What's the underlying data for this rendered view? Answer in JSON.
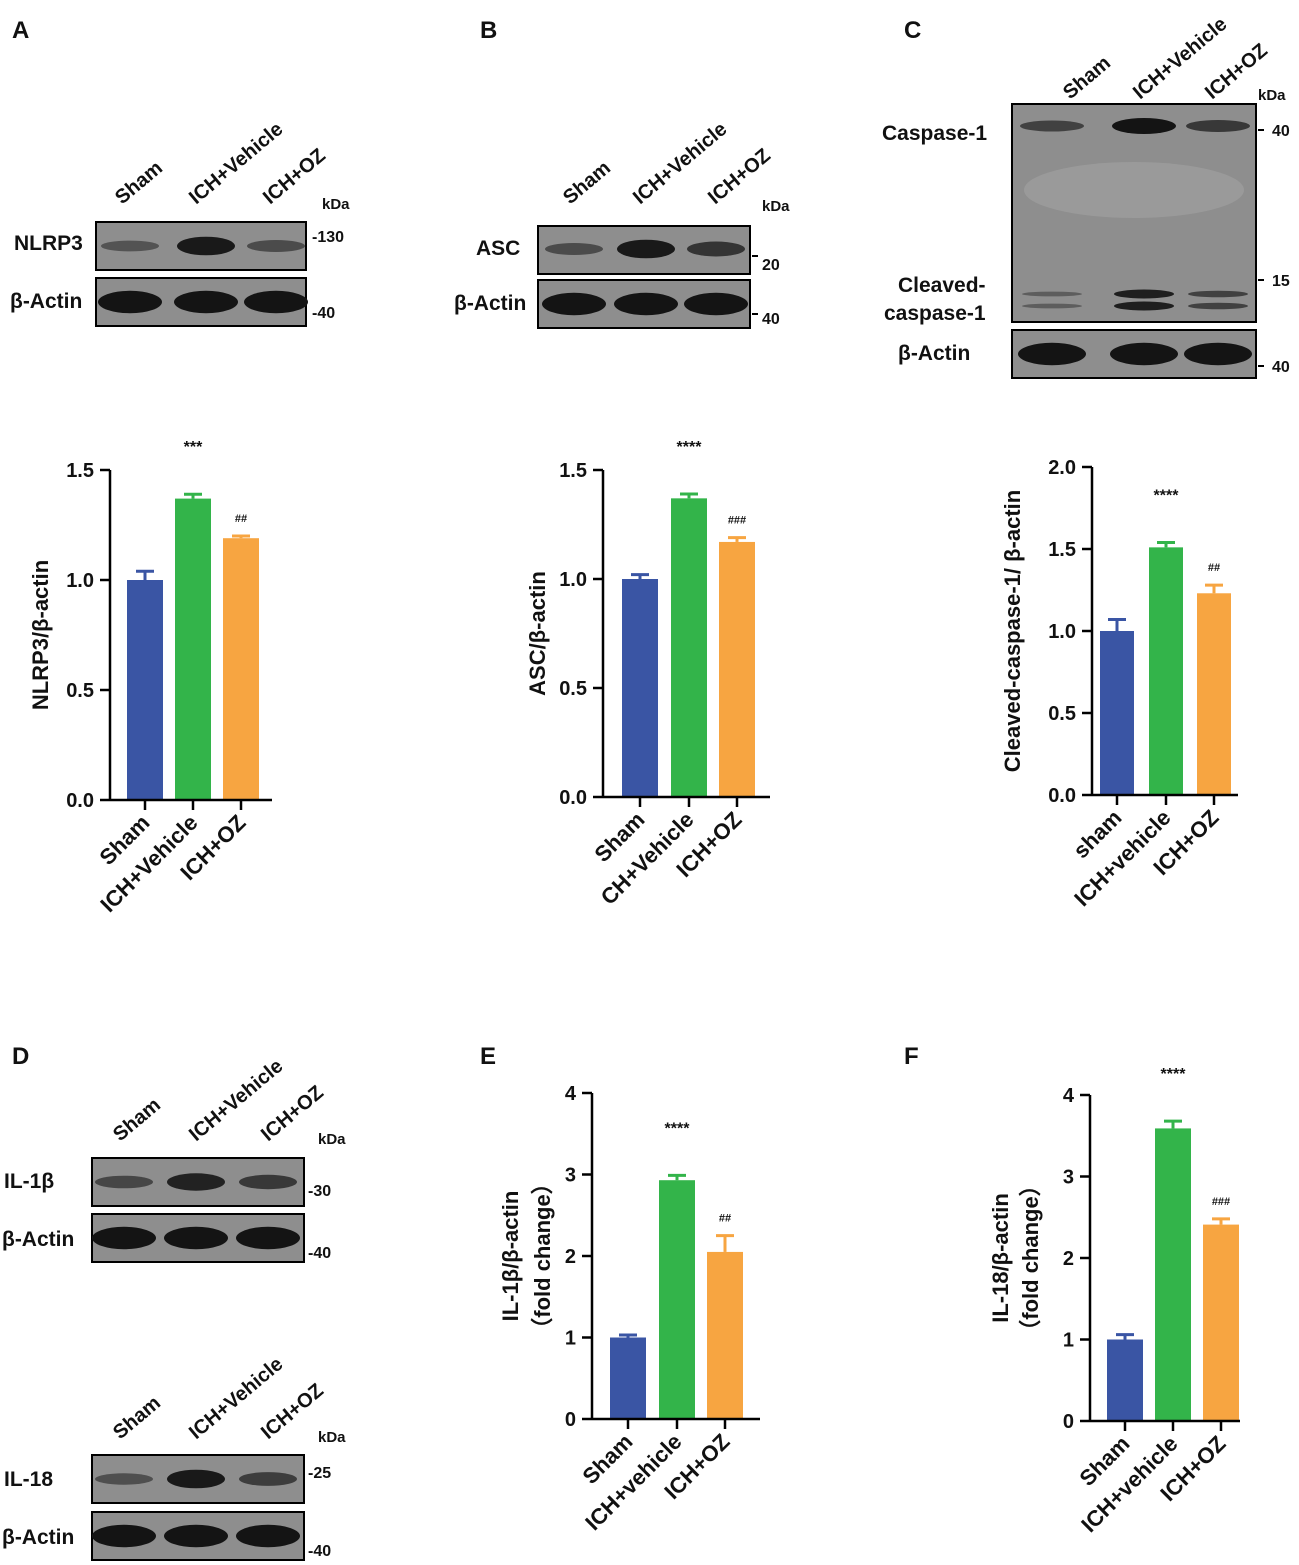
{
  "panel_labels": [
    "A",
    "B",
    "C",
    "D",
    "E",
    "F"
  ],
  "colors": {
    "sham": "#3a55a4",
    "vehicle": "#33b44a",
    "oz": "#f7a541",
    "blot_bg": "#8e8e8e",
    "band": "#141414"
  },
  "blots": {
    "A": {
      "lanes": [
        "Sham",
        "ICH+Vehicle",
        "ICH+OZ"
      ],
      "kda": "kDa",
      "rows": [
        {
          "protein": "NLRP3",
          "mw": "-130",
          "intensity": [
            0.3,
            0.95,
            0.4
          ]
        },
        {
          "protein": "β-Actin",
          "mw": "-40",
          "intensity": [
            1,
            1,
            1
          ]
        }
      ]
    },
    "B": {
      "lanes": [
        "Sham",
        "ICH+Vehicle",
        "ICH+OZ"
      ],
      "kda": "kDa",
      "rows": [
        {
          "protein": "ASC",
          "mw": "20",
          "intensity": [
            0.4,
            0.95,
            0.65
          ]
        },
        {
          "protein": "β-Actin",
          "mw": "40",
          "intensity": [
            1,
            1,
            1
          ]
        }
      ]
    },
    "C": {
      "lanes": [
        "Sham",
        "ICH+Vehicle",
        "ICH+OZ"
      ],
      "kda": "kDa",
      "rows": [
        {
          "protein": "Caspase-1",
          "protein2": "Cleaved-",
          "protein3": "caspase-1",
          "mw": "40",
          "mw2": "15",
          "intensity": [
            0.5,
            1,
            0.6
          ],
          "intensity2": [
            0.2,
            0.9,
            0.5
          ]
        },
        {
          "protein": "β-Actin",
          "mw": "40",
          "intensity": [
            1,
            1,
            1
          ]
        }
      ]
    },
    "D1": {
      "lanes": [
        "Sham",
        "ICH+Vehicle",
        "ICH+OZ"
      ],
      "kda": "kDa",
      "rows": [
        {
          "protein": "IL-1β",
          "mw": "-30",
          "intensity": [
            0.45,
            0.85,
            0.6
          ]
        },
        {
          "protein": "β-Actin",
          "mw": "-40",
          "intensity": [
            1,
            1,
            1
          ]
        }
      ]
    },
    "D2": {
      "lanes": [
        "Sham",
        "ICH+Vehicle",
        "ICH+OZ"
      ],
      "kda": "kDa",
      "rows": [
        {
          "protein": "IL-18",
          "mw": "-25",
          "intensity": [
            0.35,
            0.95,
            0.55
          ]
        },
        {
          "protein": "β-Actin",
          "mw": "-40",
          "intensity": [
            1,
            1,
            1
          ]
        }
      ]
    }
  },
  "chart_data": [
    {
      "panel": "A",
      "type": "bar",
      "categories": [
        "Sham",
        "ICH+Vehicle",
        "ICH+OZ"
      ],
      "values": [
        1.0,
        1.37,
        1.19
      ],
      "errors": [
        0.04,
        0.02,
        0.01
      ],
      "significance": [
        "",
        "***",
        "##"
      ],
      "ylabel": "NLRP3/β-actin",
      "ylim": [
        0,
        1.5
      ],
      "yticks": [
        "0.0",
        "0.5",
        "1.0",
        "1.5"
      ],
      "tick_values": [
        0,
        0.5,
        1.0,
        1.5
      ]
    },
    {
      "panel": "B",
      "type": "bar",
      "categories": [
        "Sham",
        "CH+Vehicle",
        "ICH+OZ"
      ],
      "values": [
        1.0,
        1.37,
        1.17
      ],
      "errors": [
        0.02,
        0.02,
        0.02
      ],
      "significance": [
        "",
        "****",
        "###"
      ],
      "ylabel": "ASC/β-actin",
      "ylim": [
        0,
        1.5
      ],
      "yticks": [
        "0.0",
        "0.5",
        "1.0",
        "1.5"
      ],
      "tick_values": [
        0,
        0.5,
        1.0,
        1.5
      ]
    },
    {
      "panel": "C",
      "type": "bar",
      "categories": [
        "sham",
        "ICH+vehicle",
        "ICH+OZ"
      ],
      "values": [
        1.0,
        1.51,
        1.23
      ],
      "errors": [
        0.07,
        0.03,
        0.05
      ],
      "significance": [
        "",
        "****",
        "##"
      ],
      "ylabel": "Cleaved-caspase-1/ β-actin",
      "ylim": [
        0,
        2.0
      ],
      "yticks": [
        "0.0",
        "0.5",
        "1.0",
        "1.5",
        "2.0"
      ],
      "tick_values": [
        0,
        0.5,
        1.0,
        1.5,
        2.0
      ]
    },
    {
      "panel": "E",
      "type": "bar",
      "categories": [
        "Sham",
        "ICH+vehicle",
        "ICH+OZ"
      ],
      "values": [
        1.0,
        2.93,
        2.05
      ],
      "errors": [
        0.03,
        0.06,
        0.2
      ],
      "significance": [
        "",
        "****",
        "##"
      ],
      "ylabel": "IL-1β/β-actin",
      "ylabel2": "（fold change）",
      "ylim": [
        0,
        4
      ],
      "yticks": [
        "0",
        "1",
        "2",
        "3",
        "4"
      ],
      "tick_values": [
        0,
        1,
        2,
        3,
        4
      ]
    },
    {
      "panel": "F",
      "type": "bar",
      "categories": [
        "Sham",
        "ICH+vehicle",
        "ICH+OZ"
      ],
      "values": [
        1.0,
        3.59,
        2.41
      ],
      "errors": [
        0.06,
        0.09,
        0.07
      ],
      "significance": [
        "",
        "****",
        "###"
      ],
      "ylabel": "IL-18/β-actin",
      "ylabel2": "（fold change）",
      "ylim": [
        0,
        4
      ],
      "yticks": [
        "0",
        "1",
        "2",
        "3",
        "4"
      ],
      "tick_values": [
        0,
        1,
        2,
        3,
        4
      ]
    }
  ]
}
